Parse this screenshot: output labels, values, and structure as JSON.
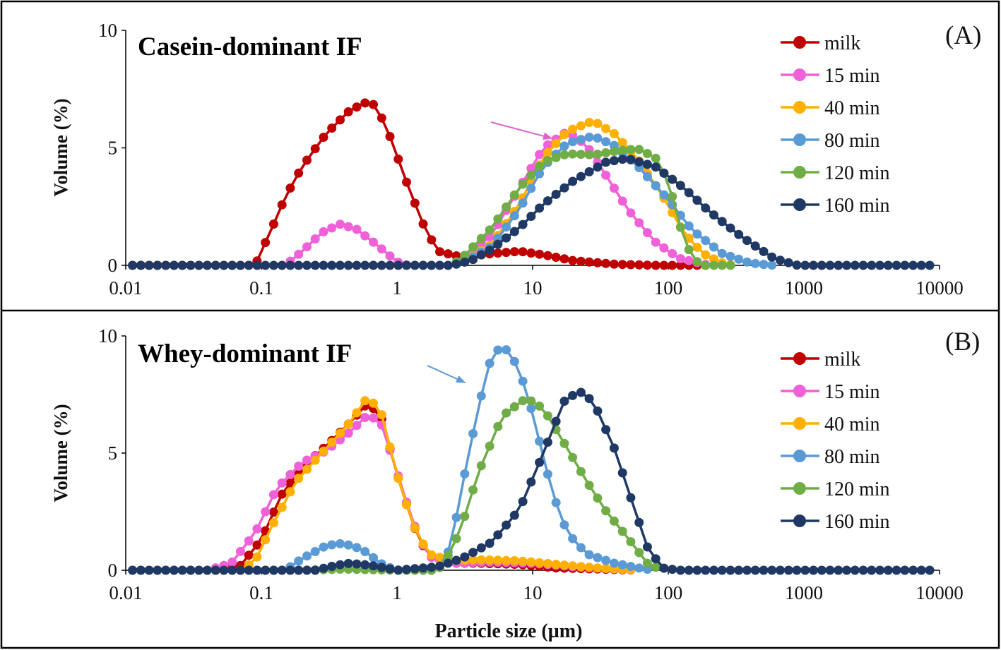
{
  "figure": {
    "xlabel": "Particle size (µm)"
  },
  "chart_data": [
    {
      "type": "line",
      "panel_label": "(A)",
      "title": "Casein-dominant IF",
      "title_color": "#e0141c",
      "xlabel": "Particle size (µm)",
      "ylabel": "Volume (%)",
      "xscale": "log",
      "xlim": [
        0.01,
        10000
      ],
      "ylim": [
        0,
        10
      ],
      "xticks": [
        "0.01",
        "0.1",
        "1",
        "10",
        "100",
        "1000",
        "10000"
      ],
      "yticks": [
        "0",
        "5",
        "10"
      ],
      "legend_position": "top-right",
      "annotation": {
        "type": "arrow",
        "color": "#e060d0",
        "points_to_x": 14,
        "points_to_y": 5.4
      },
      "series": [
        {
          "name": "milk",
          "color": "#c00000",
          "points": [
            [
              0.01,
              0
            ],
            [
              0.09,
              0
            ],
            [
              0.1,
              0.6
            ],
            [
              0.12,
              1.6
            ],
            [
              0.15,
              2.9
            ],
            [
              0.2,
              4.2
            ],
            [
              0.3,
              5.6
            ],
            [
              0.45,
              6.6
            ],
            [
              0.6,
              6.95
            ],
            [
              0.7,
              6.8
            ],
            [
              0.9,
              5.4
            ],
            [
              1.2,
              3.4
            ],
            [
              1.6,
              1.6
            ],
            [
              2,
              0.6
            ],
            [
              3,
              0.35
            ],
            [
              5,
              0.5
            ],
            [
              8,
              0.6
            ],
            [
              12,
              0.45
            ],
            [
              20,
              0.2
            ],
            [
              40,
              0.05
            ],
            [
              80,
              0
            ],
            [
              200,
              0
            ]
          ]
        },
        {
          "name": "15 min",
          "color": "#f060d8",
          "points": [
            [
              0.15,
              0
            ],
            [
              0.2,
              0.6
            ],
            [
              0.28,
              1.4
            ],
            [
              0.38,
              1.75
            ],
            [
              0.5,
              1.55
            ],
            [
              0.7,
              0.9
            ],
            [
              1,
              0.15
            ],
            [
              1.2,
              0
            ],
            [
              2.5,
              0
            ],
            [
              3,
              0.2
            ],
            [
              5,
              1.3
            ],
            [
              8,
              3.3
            ],
            [
              12,
              5
            ],
            [
              18,
              5.7
            ],
            [
              25,
              5.1
            ],
            [
              35,
              3.8
            ],
            [
              50,
              2.4
            ],
            [
              80,
              1
            ],
            [
              120,
              0.3
            ],
            [
              200,
              0
            ]
          ]
        },
        {
          "name": "40 min",
          "color": "#ffb000",
          "points": [
            [
              2.5,
              0
            ],
            [
              3,
              0.1
            ],
            [
              5,
              0.9
            ],
            [
              8,
              2.6
            ],
            [
              12,
              4.6
            ],
            [
              18,
              5.7
            ],
            [
              28,
              6.15
            ],
            [
              40,
              5.6
            ],
            [
              60,
              4.5
            ],
            [
              90,
              3
            ],
            [
              130,
              1.4
            ],
            [
              180,
              0.5
            ],
            [
              250,
              0.1
            ],
            [
              300,
              0
            ]
          ]
        },
        {
          "name": "80 min",
          "color": "#5a9ad5",
          "points": [
            [
              2.5,
              0
            ],
            [
              3,
              0.1
            ],
            [
              5,
              0.8
            ],
            [
              8,
              2.4
            ],
            [
              12,
              4.2
            ],
            [
              18,
              5.2
            ],
            [
              28,
              5.5
            ],
            [
              40,
              5.1
            ],
            [
              60,
              4.2
            ],
            [
              100,
              2.8
            ],
            [
              150,
              1.5
            ],
            [
              250,
              0.5
            ],
            [
              400,
              0.1
            ],
            [
              600,
              0
            ]
          ]
        },
        {
          "name": "120 min",
          "color": "#70ad47",
          "points": [
            [
              2.5,
              0
            ],
            [
              3,
              0.3
            ],
            [
              5,
              1.6
            ],
            [
              8,
              3.3
            ],
            [
              12,
              4.4
            ],
            [
              18,
              4.75
            ],
            [
              28,
              4.7
            ],
            [
              45,
              4.9
            ],
            [
              60,
              4.95
            ],
            [
              80,
              4.6
            ],
            [
              100,
              3.6
            ],
            [
              120,
              1.8
            ],
            [
              150,
              0.3
            ],
            [
              180,
              0
            ],
            [
              300,
              0
            ]
          ]
        },
        {
          "name": "160 min",
          "color": "#1f3864",
          "points": [
            [
              0.01,
              0
            ],
            [
              2.5,
              0
            ],
            [
              3.5,
              0.2
            ],
            [
              5,
              0.7
            ],
            [
              8,
              1.6
            ],
            [
              12,
              2.6
            ],
            [
              20,
              3.6
            ],
            [
              35,
              4.4
            ],
            [
              50,
              4.55
            ],
            [
              80,
              4.2
            ],
            [
              130,
              3.3
            ],
            [
              200,
              2.3
            ],
            [
              350,
              1.2
            ],
            [
              600,
              0.3
            ],
            [
              900,
              0
            ],
            [
              10000,
              0
            ]
          ]
        }
      ]
    },
    {
      "type": "line",
      "panel_label": "(B)",
      "title": "Whey-dominant IF",
      "title_color": "#2e75b6",
      "xlabel": "Particle size (µm)",
      "ylabel": "Volume (%)",
      "xscale": "log",
      "xlim": [
        0.01,
        10000
      ],
      "ylim": [
        0,
        10
      ],
      "xticks": [
        "0.01",
        "0.1",
        "1",
        "10",
        "100",
        "1000",
        "10000"
      ],
      "yticks": [
        "0",
        "5",
        "10"
      ],
      "legend_position": "top-right",
      "annotation": {
        "type": "arrow",
        "color": "#5a9ad5",
        "points_to_x": 3.2,
        "points_to_y": 8.0
      },
      "series": [
        {
          "name": "milk",
          "color": "#c00000",
          "points": [
            [
              0.05,
              0
            ],
            [
              0.07,
              0.2
            ],
            [
              0.1,
              1.3
            ],
            [
              0.14,
              3.2
            ],
            [
              0.2,
              4.4
            ],
            [
              0.3,
              5.3
            ],
            [
              0.45,
              6.3
            ],
            [
              0.6,
              7.1
            ],
            [
              0.75,
              6.7
            ],
            [
              1,
              4.1
            ],
            [
              1.3,
              2
            ],
            [
              1.7,
              0.6
            ],
            [
              2.5,
              0.3
            ],
            [
              4,
              0.3
            ],
            [
              8,
              0.25
            ],
            [
              15,
              0.1
            ],
            [
              30,
              0.05
            ],
            [
              60,
              0
            ]
          ]
        },
        {
          "name": "15 min",
          "color": "#f060d8",
          "points": [
            [
              0.04,
              0
            ],
            [
              0.06,
              0.3
            ],
            [
              0.09,
              1.6
            ],
            [
              0.13,
              3.5
            ],
            [
              0.2,
              4.6
            ],
            [
              0.3,
              5.1
            ],
            [
              0.45,
              5.9
            ],
            [
              0.6,
              6.6
            ],
            [
              0.75,
              6.4
            ],
            [
              1,
              4.2
            ],
            [
              1.3,
              2.1
            ],
            [
              1.7,
              0.6
            ],
            [
              2.5,
              0.3
            ],
            [
              5,
              0.35
            ],
            [
              10,
              0.3
            ],
            [
              20,
              0.15
            ],
            [
              40,
              0.05
            ],
            [
              60,
              0
            ]
          ]
        },
        {
          "name": "40 min",
          "color": "#ffb000",
          "points": [
            [
              0.07,
              0
            ],
            [
              0.09,
              0.4
            ],
            [
              0.12,
              1.9
            ],
            [
              0.18,
              3.8
            ],
            [
              0.3,
              5.2
            ],
            [
              0.45,
              6.3
            ],
            [
              0.6,
              7.35
            ],
            [
              0.75,
              6.9
            ],
            [
              1,
              4.1
            ],
            [
              1.3,
              2
            ],
            [
              1.7,
              0.7
            ],
            [
              2.5,
              0.4
            ],
            [
              4,
              0.45
            ],
            [
              8,
              0.4
            ],
            [
              15,
              0.25
            ],
            [
              30,
              0.1
            ],
            [
              60,
              0
            ]
          ]
        },
        {
          "name": "80 min",
          "color": "#5a9ad5",
          "points": [
            [
              0.15,
              0
            ],
            [
              0.2,
              0.5
            ],
            [
              0.3,
              1.05
            ],
            [
              0.4,
              1.15
            ],
            [
              0.55,
              0.9
            ],
            [
              0.8,
              0.2
            ],
            [
              1,
              0
            ],
            [
              2,
              0
            ],
            [
              2.5,
              1
            ],
            [
              3,
              3.5
            ],
            [
              4,
              7
            ],
            [
              5,
              9.2
            ],
            [
              6,
              9.55
            ],
            [
              7,
              9.2
            ],
            [
              9,
              7.7
            ],
            [
              11,
              5.7
            ],
            [
              14,
              3.3
            ],
            [
              18,
              1.6
            ],
            [
              25,
              0.7
            ],
            [
              40,
              0.3
            ],
            [
              60,
              0.1
            ],
            [
              80,
              0
            ]
          ]
        },
        {
          "name": "120 min",
          "color": "#70ad47",
          "points": [
            [
              0.01,
              0
            ],
            [
              0.2,
              0
            ],
            [
              0.4,
              0.05
            ],
            [
              1,
              0
            ],
            [
              2,
              0
            ],
            [
              2.5,
              0.8
            ],
            [
              3,
              1.9
            ],
            [
              4,
              4.2
            ],
            [
              6,
              6.6
            ],
            [
              9,
              7.35
            ],
            [
              12,
              6.9
            ],
            [
              18,
              5.2
            ],
            [
              25,
              3.8
            ],
            [
              35,
              2.5
            ],
            [
              50,
              1.4
            ],
            [
              70,
              0.3
            ],
            [
              90,
              0
            ]
          ]
        },
        {
          "name": "160 min",
          "color": "#1f3864",
          "points": [
            [
              0.01,
              0
            ],
            [
              0.25,
              0
            ],
            [
              0.35,
              0.2
            ],
            [
              0.45,
              0.3
            ],
            [
              0.65,
              0.2
            ],
            [
              1,
              0
            ],
            [
              2,
              0.15
            ],
            [
              3,
              0.5
            ],
            [
              5,
              1.2
            ],
            [
              8,
              2.6
            ],
            [
              12,
              5
            ],
            [
              17,
              7.2
            ],
            [
              22,
              7.65
            ],
            [
              28,
              7.2
            ],
            [
              40,
              5.2
            ],
            [
              55,
              2.8
            ],
            [
              70,
              1
            ],
            [
              90,
              0.1
            ],
            [
              120,
              0
            ],
            [
              10000,
              0
            ]
          ]
        }
      ]
    }
  ]
}
